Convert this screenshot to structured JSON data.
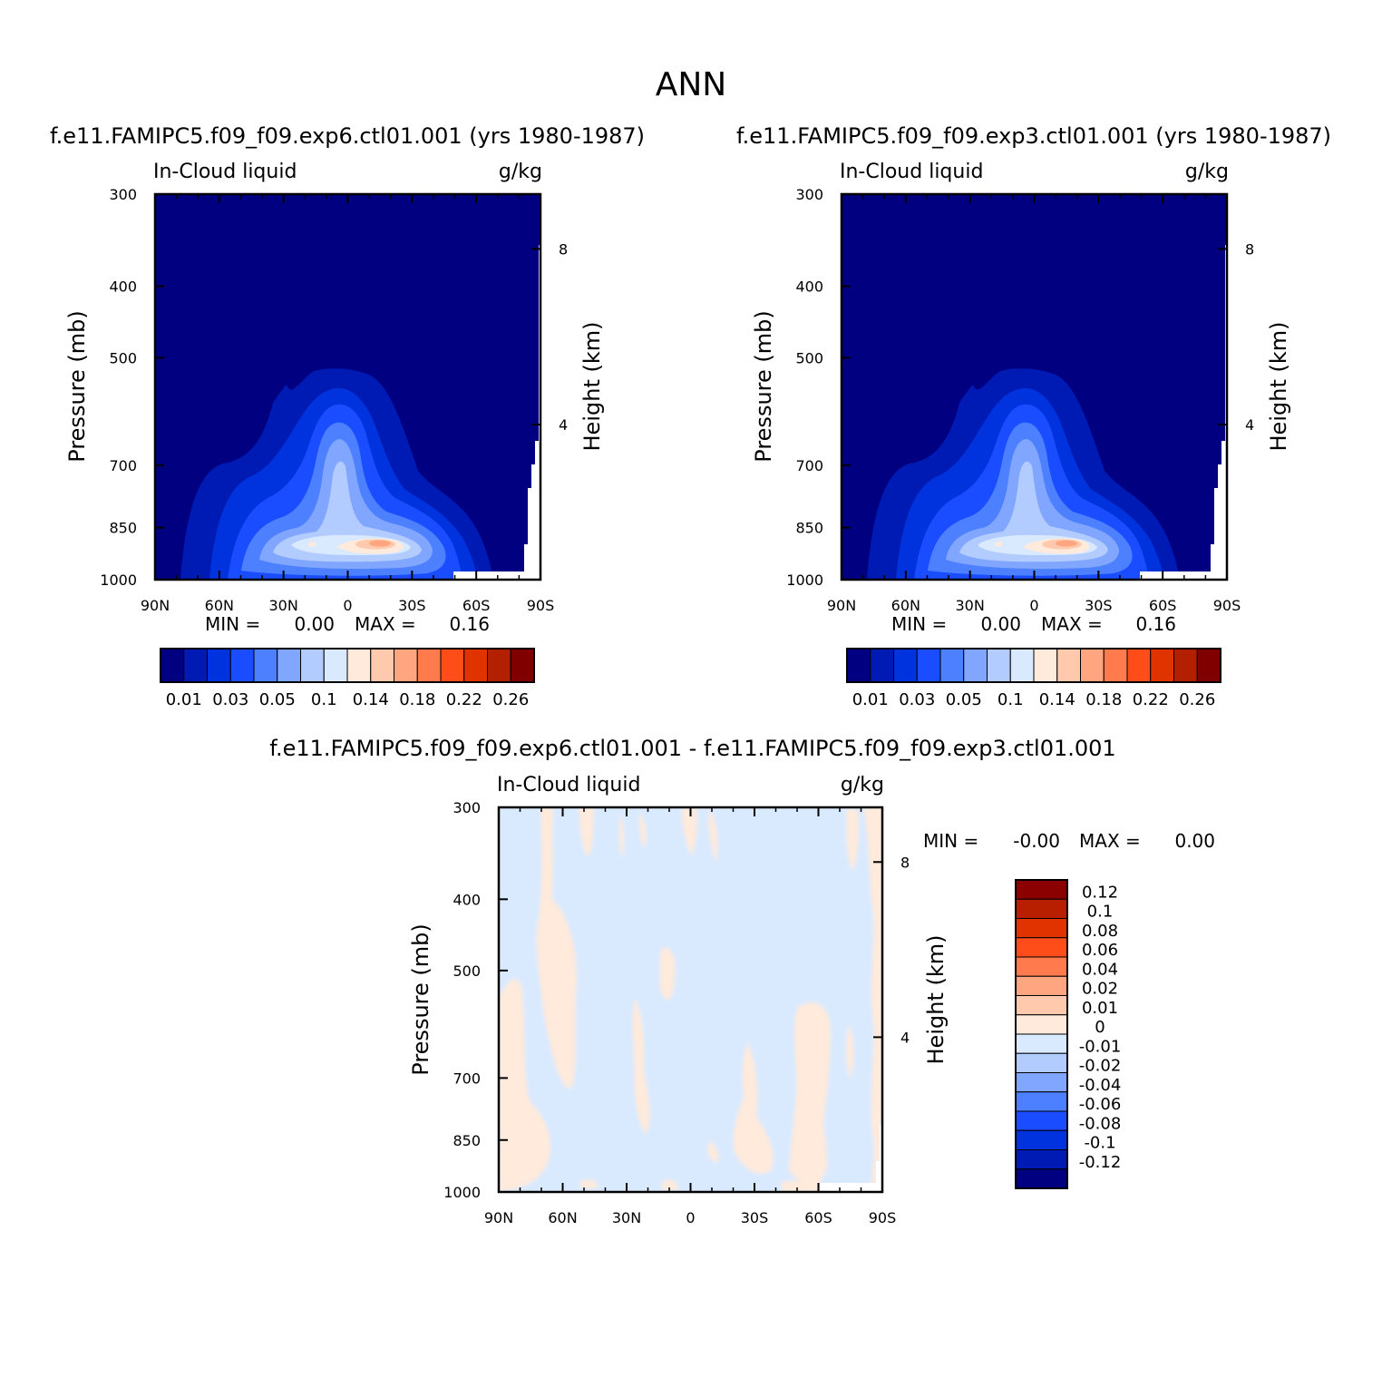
{
  "figure_title": "ANN",
  "chart_data": [
    {
      "type": "heatmap",
      "title": "f.e11.FAMIPC5.f09_f09.exp6.ctl01.001 (yrs 1980-1987)",
      "left_label": "In-Cloud liquid",
      "right_label": "g/kg",
      "xlabel": "",
      "ylabel": "Pressure (mb)",
      "ylabel_right": "Height (km)",
      "x_ticks": [
        "90N",
        "60N",
        "30N",
        "0",
        "30S",
        "60S",
        "90S"
      ],
      "y_ticks": [
        "300",
        "400",
        "500",
        "700",
        "850",
        "1000"
      ],
      "y_ticks_right": [
        "8",
        "4"
      ],
      "min_text": "MIN =",
      "min_value": "0.00",
      "max_text": "MAX =",
      "max_value": "0.16",
      "min": 0.0,
      "max": 0.16,
      "colorbar_orientation": "horizontal",
      "colorbar_labels": [
        "0.01",
        "0.03",
        "0.05",
        "0.1",
        "0.14",
        "0.18",
        "0.22",
        "0.26"
      ],
      "colorbar_colors": [
        "#000080",
        "#001ab4",
        "#0033dd",
        "#1a4dff",
        "#4d80ff",
        "#80a6ff",
        "#b3ccff",
        "#d9eaff",
        "#ffeadb",
        "#ffc9ad",
        "#ffa680",
        "#ff7a4d",
        "#ff4d1a",
        "#e03300",
        "#b32000",
        "#800000"
      ]
    },
    {
      "type": "heatmap",
      "title": "f.e11.FAMIPC5.f09_f09.exp3.ctl01.001 (yrs 1980-1987)",
      "left_label": "In-Cloud liquid",
      "right_label": "g/kg",
      "xlabel": "",
      "ylabel": "Pressure (mb)",
      "ylabel_right": "Height (km)",
      "x_ticks": [
        "90N",
        "60N",
        "30N",
        "0",
        "30S",
        "60S",
        "90S"
      ],
      "y_ticks": [
        "300",
        "400",
        "500",
        "700",
        "850",
        "1000"
      ],
      "y_ticks_right": [
        "8",
        "4"
      ],
      "min_text": "MIN =",
      "min_value": "0.00",
      "max_text": "MAX =",
      "max_value": "0.16",
      "min": 0.0,
      "max": 0.16,
      "colorbar_orientation": "horizontal",
      "colorbar_labels": [
        "0.01",
        "0.03",
        "0.05",
        "0.1",
        "0.14",
        "0.18",
        "0.22",
        "0.26"
      ],
      "colorbar_colors": [
        "#000080",
        "#001ab4",
        "#0033dd",
        "#1a4dff",
        "#4d80ff",
        "#80a6ff",
        "#b3ccff",
        "#d9eaff",
        "#ffeadb",
        "#ffc9ad",
        "#ffa680",
        "#ff7a4d",
        "#ff4d1a",
        "#e03300",
        "#b32000",
        "#800000"
      ]
    },
    {
      "type": "heatmap",
      "title": "f.e11.FAMIPC5.f09_f09.exp6.ctl01.001 - f.e11.FAMIPC5.f09_f09.exp3.ctl01.001",
      "left_label": "In-Cloud liquid",
      "right_label": "g/kg",
      "xlabel": "",
      "ylabel": "Pressure (mb)",
      "ylabel_right": "Height (km)",
      "x_ticks": [
        "90N",
        "60N",
        "30N",
        "0",
        "30S",
        "60S",
        "90S"
      ],
      "y_ticks": [
        "300",
        "400",
        "500",
        "700",
        "850",
        "1000"
      ],
      "y_ticks_right": [
        "8",
        "4"
      ],
      "min_text": "MIN =",
      "min_value": "-0.00",
      "max_text": "MAX =",
      "max_value": "0.00",
      "min": -0.0,
      "max": 0.0,
      "colorbar_orientation": "vertical",
      "colorbar_labels": [
        "0.12",
        "0.1",
        "0.08",
        "0.06",
        "0.04",
        "0.02",
        "0.01",
        "0",
        "-0.01",
        "-0.02",
        "-0.04",
        "-0.06",
        "-0.08",
        "-0.1",
        "-0.12"
      ],
      "colorbar_colors": [
        "#8b0000",
        "#b81e00",
        "#e03300",
        "#ff4d1a",
        "#ff7a4d",
        "#ffa680",
        "#ffc9ad",
        "#ffeadb",
        "#d9eaff",
        "#b3ccff",
        "#80a6ff",
        "#4d80ff",
        "#1a4dff",
        "#0033dd",
        "#001ab4",
        "#000080"
      ]
    }
  ]
}
